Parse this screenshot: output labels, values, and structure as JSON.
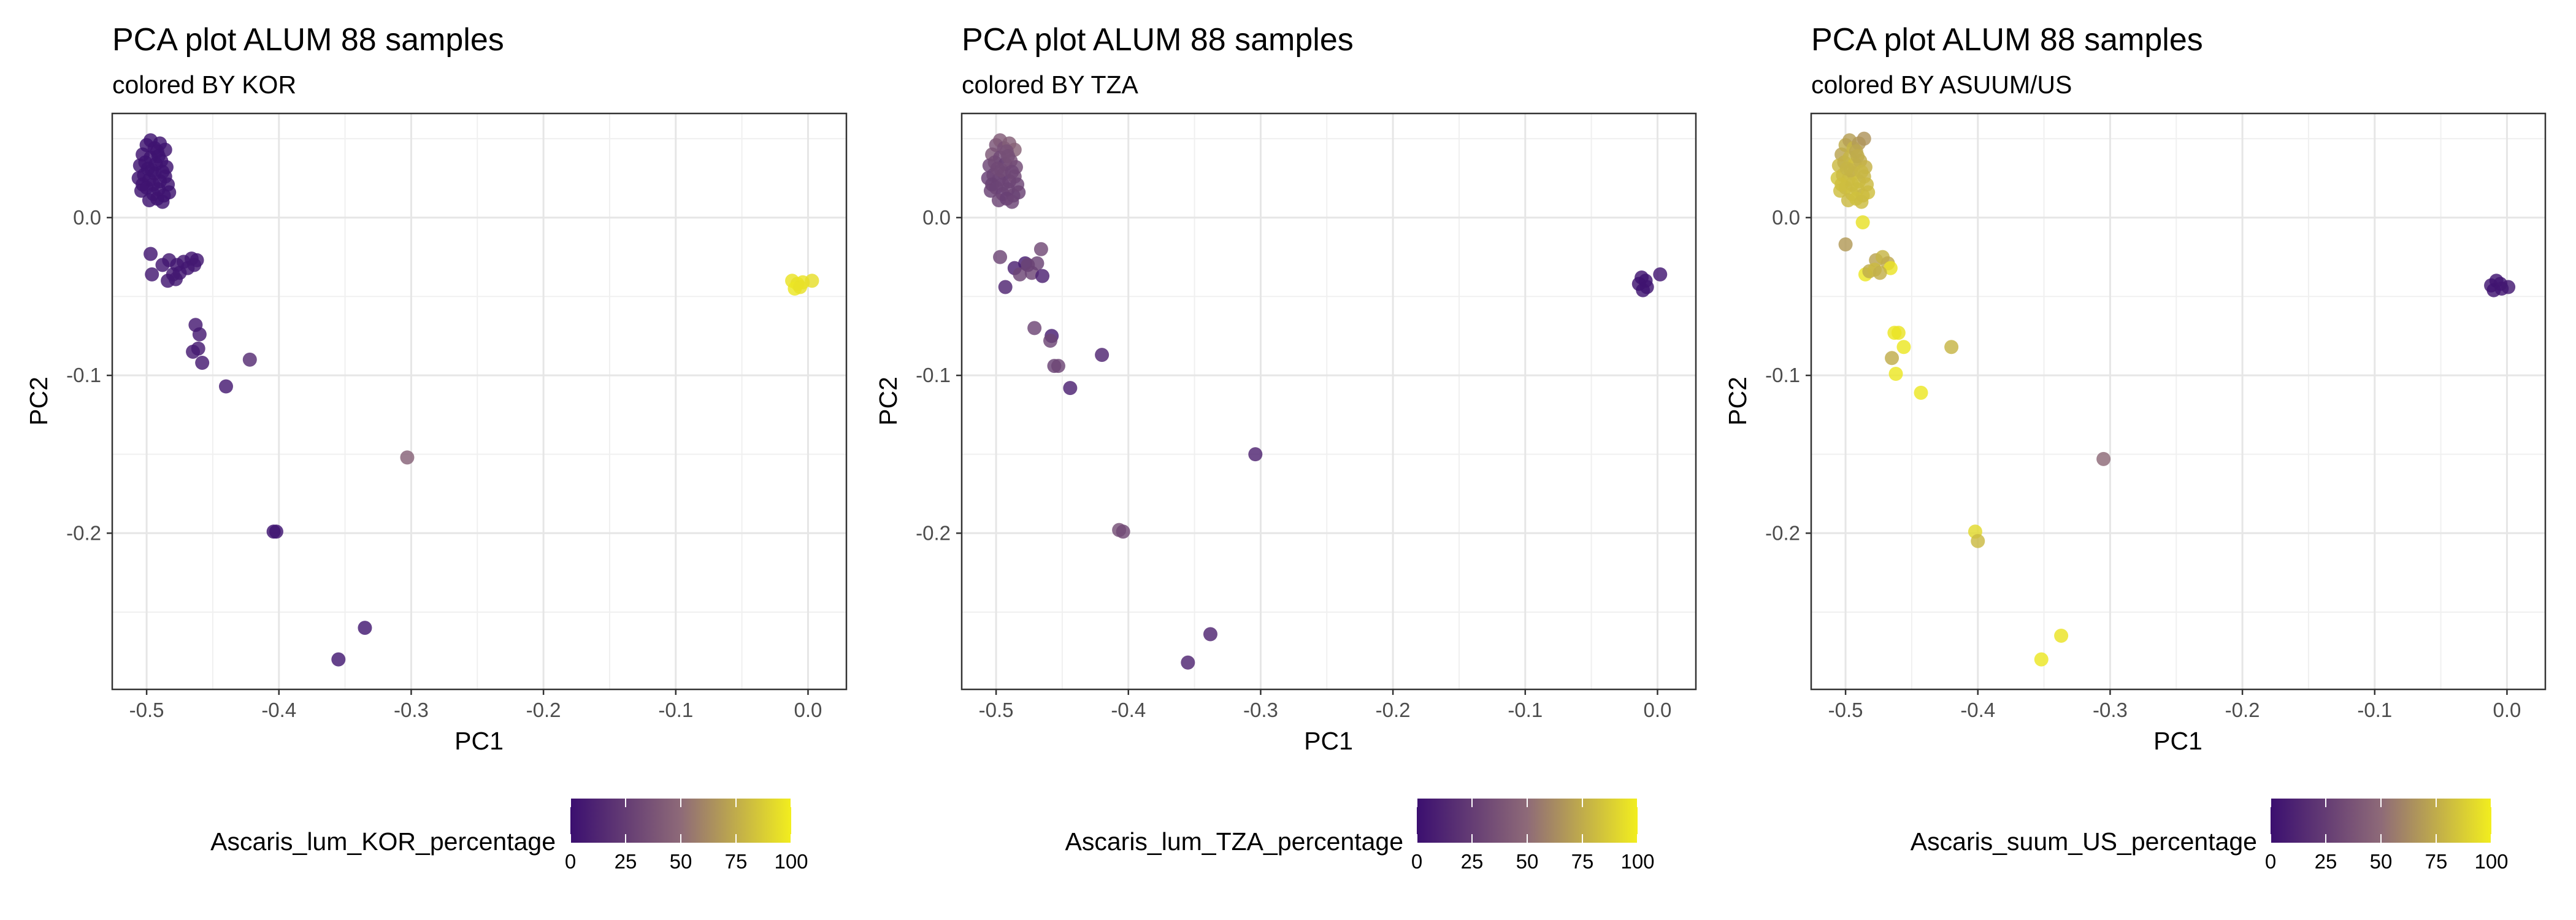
{
  "chart_data": [
    {
      "type": "scatter",
      "title": "PCA plot ALUM 88 samples",
      "subtitle": "colored BY KOR",
      "xlabel": "PC1",
      "ylabel": "PC2",
      "xlim": [
        -0.526,
        0.029
      ],
      "ylim": [
        -0.299,
        0.066
      ],
      "xticks": [
        -0.5,
        -0.4,
        -0.3,
        -0.2,
        -0.1,
        0.0
      ],
      "xtick_labels": [
        "-0.5",
        "-0.4",
        "-0.3",
        "-0.2",
        "-0.1",
        "0.0"
      ],
      "yticks": [
        0.0,
        -0.1,
        -0.2
      ],
      "ytick_labels": [
        "0.0",
        "-0.1",
        "-0.2"
      ],
      "grid": true,
      "legend": {
        "title": "Ascaris_lum_KOR_percentage",
        "position": "bottom",
        "range": [
          0,
          100
        ],
        "ticks": [
          "0",
          "25",
          "50",
          "75",
          "100"
        ]
      },
      "points": [
        {
          "x": -0.503,
          "y": 0.04,
          "c": 3
        },
        {
          "x": -0.5,
          "y": 0.046,
          "c": 2
        },
        {
          "x": -0.497,
          "y": 0.049,
          "c": 2
        },
        {
          "x": -0.494,
          "y": 0.044,
          "c": 3
        },
        {
          "x": -0.49,
          "y": 0.047,
          "c": 2
        },
        {
          "x": -0.486,
          "y": 0.043,
          "c": 3
        },
        {
          "x": -0.505,
          "y": 0.033,
          "c": 2
        },
        {
          "x": -0.501,
          "y": 0.035,
          "c": 3
        },
        {
          "x": -0.497,
          "y": 0.038,
          "c": 2
        },
        {
          "x": -0.493,
          "y": 0.034,
          "c": 2
        },
        {
          "x": -0.489,
          "y": 0.036,
          "c": 3
        },
        {
          "x": -0.485,
          "y": 0.032,
          "c": 2
        },
        {
          "x": -0.506,
          "y": 0.025,
          "c": 2
        },
        {
          "x": -0.502,
          "y": 0.027,
          "c": 3
        },
        {
          "x": -0.498,
          "y": 0.024,
          "c": 2
        },
        {
          "x": -0.494,
          "y": 0.028,
          "c": 2
        },
        {
          "x": -0.49,
          "y": 0.023,
          "c": 3
        },
        {
          "x": -0.486,
          "y": 0.026,
          "c": 2
        },
        {
          "x": -0.504,
          "y": 0.017,
          "c": 2
        },
        {
          "x": -0.5,
          "y": 0.019,
          "c": 3
        },
        {
          "x": -0.495,
          "y": 0.015,
          "c": 2
        },
        {
          "x": -0.491,
          "y": 0.018,
          "c": 2
        },
        {
          "x": -0.487,
          "y": 0.014,
          "c": 3
        },
        {
          "x": -0.483,
          "y": 0.016,
          "c": 2
        },
        {
          "x": -0.498,
          "y": 0.011,
          "c": 2
        },
        {
          "x": -0.492,
          "y": 0.012,
          "c": 3
        },
        {
          "x": -0.488,
          "y": 0.01,
          "c": 2
        },
        {
          "x": -0.496,
          "y": 0.03,
          "c": 2
        },
        {
          "x": -0.492,
          "y": 0.042,
          "c": 3
        },
        {
          "x": -0.488,
          "y": 0.029,
          "c": 2
        },
        {
          "x": -0.503,
          "y": 0.021,
          "c": 3
        },
        {
          "x": -0.484,
          "y": 0.021,
          "c": 2
        },
        {
          "x": -0.499,
          "y": 0.031,
          "c": 2
        },
        {
          "x": -0.491,
          "y": 0.039,
          "c": 2
        },
        {
          "x": -0.495,
          "y": 0.021,
          "c": 3
        },
        {
          "x": -0.497,
          "y": -0.023,
          "c": 4
        },
        {
          "x": -0.496,
          "y": -0.036,
          "c": 5
        },
        {
          "x": -0.488,
          "y": -0.03,
          "c": 4
        },
        {
          "x": -0.483,
          "y": -0.027,
          "c": 5
        },
        {
          "x": -0.477,
          "y": -0.03,
          "c": 4
        },
        {
          "x": -0.472,
          "y": -0.028,
          "c": 5
        },
        {
          "x": -0.466,
          "y": -0.026,
          "c": 4
        },
        {
          "x": -0.462,
          "y": -0.027,
          "c": 4
        },
        {
          "x": -0.48,
          "y": -0.036,
          "c": 5
        },
        {
          "x": -0.475,
          "y": -0.035,
          "c": 4
        },
        {
          "x": -0.484,
          "y": -0.04,
          "c": 4
        },
        {
          "x": -0.478,
          "y": -0.039,
          "c": 5
        },
        {
          "x": -0.469,
          "y": -0.032,
          "c": 4
        },
        {
          "x": -0.464,
          "y": -0.03,
          "c": 5
        },
        {
          "x": -0.463,
          "y": -0.068,
          "c": 6
        },
        {
          "x": -0.46,
          "y": -0.074,
          "c": 6
        },
        {
          "x": -0.465,
          "y": -0.085,
          "c": 6
        },
        {
          "x": -0.461,
          "y": -0.083,
          "c": 6
        },
        {
          "x": -0.458,
          "y": -0.092,
          "c": 6
        },
        {
          "x": -0.44,
          "y": -0.107,
          "c": 6
        },
        {
          "x": -0.422,
          "y": -0.09,
          "c": 16
        },
        {
          "x": -0.303,
          "y": -0.152,
          "c": 45
        },
        {
          "x": -0.402,
          "y": -0.199,
          "c": 2
        },
        {
          "x": -0.404,
          "y": -0.199,
          "c": 2
        },
        {
          "x": -0.335,
          "y": -0.26,
          "c": 5
        },
        {
          "x": -0.355,
          "y": -0.28,
          "c": 5
        },
        {
          "x": -0.012,
          "y": -0.04,
          "c": 96
        },
        {
          "x": -0.008,
          "y": -0.042,
          "c": 95
        },
        {
          "x": -0.004,
          "y": -0.041,
          "c": 96
        },
        {
          "x": -0.01,
          "y": -0.045,
          "c": 97
        },
        {
          "x": -0.006,
          "y": -0.044,
          "c": 95
        },
        {
          "x": 0.003,
          "y": -0.04,
          "c": 94
        }
      ]
    },
    {
      "type": "scatter",
      "title": "PCA plot ALUM 88 samples",
      "subtitle": "colored BY TZA",
      "xlabel": "PC1",
      "ylabel": "PC2",
      "xlim": [
        -0.526,
        0.029
      ],
      "ylim": [
        -0.299,
        0.066
      ],
      "xticks": [
        -0.5,
        -0.4,
        -0.3,
        -0.2,
        -0.1,
        0.0
      ],
      "xtick_labels": [
        "-0.5",
        "-0.4",
        "-0.3",
        "-0.2",
        "-0.1",
        "0.0"
      ],
      "yticks": [
        0.0,
        -0.1,
        -0.2
      ],
      "ytick_labels": [
        "0.0",
        "-0.1",
        "-0.2"
      ],
      "grid": true,
      "legend": {
        "title": "Ascaris_lum_TZA_percentage",
        "position": "bottom",
        "range": [
          0,
          100
        ],
        "ticks": [
          "0",
          "25",
          "50",
          "75",
          "100"
        ]
      },
      "points": [
        {
          "x": -0.503,
          "y": 0.04,
          "c": 40
        },
        {
          "x": -0.5,
          "y": 0.046,
          "c": 38
        },
        {
          "x": -0.497,
          "y": 0.049,
          "c": 42
        },
        {
          "x": -0.494,
          "y": 0.044,
          "c": 36
        },
        {
          "x": -0.49,
          "y": 0.047,
          "c": 44
        },
        {
          "x": -0.486,
          "y": 0.043,
          "c": 46
        },
        {
          "x": -0.505,
          "y": 0.033,
          "c": 30
        },
        {
          "x": -0.501,
          "y": 0.035,
          "c": 34
        },
        {
          "x": -0.497,
          "y": 0.038,
          "c": 32
        },
        {
          "x": -0.493,
          "y": 0.034,
          "c": 28
        },
        {
          "x": -0.489,
          "y": 0.036,
          "c": 35
        },
        {
          "x": -0.485,
          "y": 0.032,
          "c": 33
        },
        {
          "x": -0.506,
          "y": 0.025,
          "c": 26
        },
        {
          "x": -0.502,
          "y": 0.027,
          "c": 30
        },
        {
          "x": -0.498,
          "y": 0.024,
          "c": 29
        },
        {
          "x": -0.494,
          "y": 0.028,
          "c": 31
        },
        {
          "x": -0.49,
          "y": 0.023,
          "c": 27
        },
        {
          "x": -0.486,
          "y": 0.026,
          "c": 32
        },
        {
          "x": -0.504,
          "y": 0.017,
          "c": 28
        },
        {
          "x": -0.5,
          "y": 0.019,
          "c": 30
        },
        {
          "x": -0.495,
          "y": 0.015,
          "c": 27
        },
        {
          "x": -0.491,
          "y": 0.018,
          "c": 29
        },
        {
          "x": -0.487,
          "y": 0.014,
          "c": 31
        },
        {
          "x": -0.483,
          "y": 0.016,
          "c": 28
        },
        {
          "x": -0.498,
          "y": 0.011,
          "c": 30
        },
        {
          "x": -0.492,
          "y": 0.012,
          "c": 27
        },
        {
          "x": -0.488,
          "y": 0.01,
          "c": 29
        },
        {
          "x": -0.496,
          "y": 0.03,
          "c": 33
        },
        {
          "x": -0.492,
          "y": 0.042,
          "c": 37
        },
        {
          "x": -0.488,
          "y": 0.029,
          "c": 31
        },
        {
          "x": -0.503,
          "y": 0.021,
          "c": 28
        },
        {
          "x": -0.484,
          "y": 0.021,
          "c": 30
        },
        {
          "x": -0.499,
          "y": 0.031,
          "c": 32
        },
        {
          "x": -0.491,
          "y": 0.039,
          "c": 35
        },
        {
          "x": -0.495,
          "y": 0.021,
          "c": 29
        },
        {
          "x": -0.497,
          "y": -0.025,
          "c": 30
        },
        {
          "x": -0.493,
          "y": -0.044,
          "c": 12
        },
        {
          "x": -0.486,
          "y": -0.032,
          "c": 10
        },
        {
          "x": -0.478,
          "y": -0.029,
          "c": 8
        },
        {
          "x": -0.473,
          "y": -0.035,
          "c": 30
        },
        {
          "x": -0.466,
          "y": -0.02,
          "c": 32
        },
        {
          "x": -0.469,
          "y": -0.029,
          "c": 28
        },
        {
          "x": -0.465,
          "y": -0.037,
          "c": 10
        },
        {
          "x": -0.482,
          "y": -0.036,
          "c": 30
        },
        {
          "x": -0.476,
          "y": -0.03,
          "c": 28
        },
        {
          "x": -0.471,
          "y": -0.07,
          "c": 30
        },
        {
          "x": -0.458,
          "y": -0.075,
          "c": 8
        },
        {
          "x": -0.459,
          "y": -0.078,
          "c": 30
        },
        {
          "x": -0.456,
          "y": -0.094,
          "c": 28
        },
        {
          "x": -0.453,
          "y": -0.094,
          "c": 30
        },
        {
          "x": -0.444,
          "y": -0.108,
          "c": 10
        },
        {
          "x": -0.42,
          "y": -0.087,
          "c": 12
        },
        {
          "x": -0.304,
          "y": -0.15,
          "c": 12
        },
        {
          "x": -0.407,
          "y": -0.198,
          "c": 35
        },
        {
          "x": -0.404,
          "y": -0.199,
          "c": 32
        },
        {
          "x": -0.338,
          "y": -0.264,
          "c": 12
        },
        {
          "x": -0.355,
          "y": -0.282,
          "c": 12
        },
        {
          "x": -0.012,
          "y": -0.038,
          "c": 3
        },
        {
          "x": -0.009,
          "y": -0.04,
          "c": 2
        },
        {
          "x": -0.014,
          "y": -0.042,
          "c": 3
        },
        {
          "x": -0.011,
          "y": -0.046,
          "c": 2
        },
        {
          "x": -0.008,
          "y": -0.044,
          "c": 3
        },
        {
          "x": 0.002,
          "y": -0.036,
          "c": 4
        }
      ]
    },
    {
      "type": "scatter",
      "title": "PCA plot ALUM 88 samples",
      "subtitle": "colored BY ASUUM/US",
      "xlabel": "PC1",
      "ylabel": "PC2",
      "xlim": [
        -0.526,
        0.029
      ],
      "ylim": [
        -0.299,
        0.066
      ],
      "xticks": [
        -0.5,
        -0.4,
        -0.3,
        -0.2,
        -0.1,
        0.0
      ],
      "xtick_labels": [
        "-0.5",
        "-0.4",
        "-0.3",
        "-0.2",
        "-0.1",
        "0.0"
      ],
      "yticks": [
        0.0,
        -0.1,
        -0.2
      ],
      "ytick_labels": [
        "0.0",
        "-0.1",
        "-0.2"
      ],
      "grid": true,
      "legend": {
        "title": "Ascaris_suum_US_percentage",
        "position": "bottom",
        "range": [
          0,
          100
        ],
        "ticks": [
          "0",
          "25",
          "50",
          "75",
          "100"
        ]
      },
      "points": [
        {
          "x": -0.503,
          "y": 0.04,
          "c": 72
        },
        {
          "x": -0.5,
          "y": 0.046,
          "c": 75
        },
        {
          "x": -0.497,
          "y": 0.049,
          "c": 70
        },
        {
          "x": -0.494,
          "y": 0.044,
          "c": 78
        },
        {
          "x": -0.49,
          "y": 0.047,
          "c": 68
        },
        {
          "x": -0.486,
          "y": 0.05,
          "c": 66
        },
        {
          "x": -0.505,
          "y": 0.033,
          "c": 80
        },
        {
          "x": -0.501,
          "y": 0.035,
          "c": 76
        },
        {
          "x": -0.497,
          "y": 0.038,
          "c": 78
        },
        {
          "x": -0.493,
          "y": 0.034,
          "c": 82
        },
        {
          "x": -0.489,
          "y": 0.036,
          "c": 75
        },
        {
          "x": -0.485,
          "y": 0.032,
          "c": 77
        },
        {
          "x": -0.506,
          "y": 0.025,
          "c": 84
        },
        {
          "x": -0.502,
          "y": 0.027,
          "c": 80
        },
        {
          "x": -0.498,
          "y": 0.024,
          "c": 81
        },
        {
          "x": -0.494,
          "y": 0.028,
          "c": 79
        },
        {
          "x": -0.49,
          "y": 0.023,
          "c": 83
        },
        {
          "x": -0.486,
          "y": 0.026,
          "c": 78
        },
        {
          "x": -0.504,
          "y": 0.017,
          "c": 82
        },
        {
          "x": -0.5,
          "y": 0.019,
          "c": 80
        },
        {
          "x": -0.495,
          "y": 0.015,
          "c": 83
        },
        {
          "x": -0.491,
          "y": 0.018,
          "c": 81
        },
        {
          "x": -0.487,
          "y": 0.014,
          "c": 79
        },
        {
          "x": -0.483,
          "y": 0.016,
          "c": 82
        },
        {
          "x": -0.498,
          "y": 0.011,
          "c": 80
        },
        {
          "x": -0.492,
          "y": 0.012,
          "c": 83
        },
        {
          "x": -0.488,
          "y": 0.01,
          "c": 81
        },
        {
          "x": -0.496,
          "y": 0.03,
          "c": 77
        },
        {
          "x": -0.492,
          "y": 0.042,
          "c": 73
        },
        {
          "x": -0.488,
          "y": 0.029,
          "c": 79
        },
        {
          "x": -0.503,
          "y": 0.021,
          "c": 82
        },
        {
          "x": -0.484,
          "y": 0.021,
          "c": 80
        },
        {
          "x": -0.499,
          "y": 0.031,
          "c": 78
        },
        {
          "x": -0.491,
          "y": 0.039,
          "c": 75
        },
        {
          "x": -0.495,
          "y": 0.021,
          "c": 81
        },
        {
          "x": -0.5,
          "y": -0.017,
          "c": 68
        },
        {
          "x": -0.487,
          "y": -0.003,
          "c": 95
        },
        {
          "x": -0.485,
          "y": -0.036,
          "c": 97
        },
        {
          "x": -0.482,
          "y": -0.034,
          "c": 75
        },
        {
          "x": -0.477,
          "y": -0.027,
          "c": 72
        },
        {
          "x": -0.472,
          "y": -0.025,
          "c": 78
        },
        {
          "x": -0.468,
          "y": -0.029,
          "c": 74
        },
        {
          "x": -0.466,
          "y": -0.032,
          "c": 96
        },
        {
          "x": -0.478,
          "y": -0.033,
          "c": 80
        },
        {
          "x": -0.474,
          "y": -0.035,
          "c": 76
        },
        {
          "x": -0.463,
          "y": -0.073,
          "c": 97
        },
        {
          "x": -0.46,
          "y": -0.073,
          "c": 96
        },
        {
          "x": -0.456,
          "y": -0.082,
          "c": 97
        },
        {
          "x": -0.465,
          "y": -0.089,
          "c": 75
        },
        {
          "x": -0.462,
          "y": -0.099,
          "c": 97
        },
        {
          "x": -0.443,
          "y": -0.111,
          "c": 97
        },
        {
          "x": -0.42,
          "y": -0.082,
          "c": 78
        },
        {
          "x": -0.305,
          "y": -0.153,
          "c": 50
        },
        {
          "x": -0.402,
          "y": -0.199,
          "c": 92
        },
        {
          "x": -0.4,
          "y": -0.205,
          "c": 80
        },
        {
          "x": -0.337,
          "y": -0.265,
          "c": 96
        },
        {
          "x": -0.352,
          "y": -0.28,
          "c": 97
        },
        {
          "x": -0.012,
          "y": -0.043,
          "c": 4
        },
        {
          "x": -0.008,
          "y": -0.04,
          "c": 3
        },
        {
          "x": -0.005,
          "y": -0.042,
          "c": 4
        },
        {
          "x": -0.01,
          "y": -0.046,
          "c": 3
        },
        {
          "x": -0.004,
          "y": -0.045,
          "c": 4
        },
        {
          "x": 0.001,
          "y": -0.044,
          "c": 5
        }
      ]
    }
  ]
}
